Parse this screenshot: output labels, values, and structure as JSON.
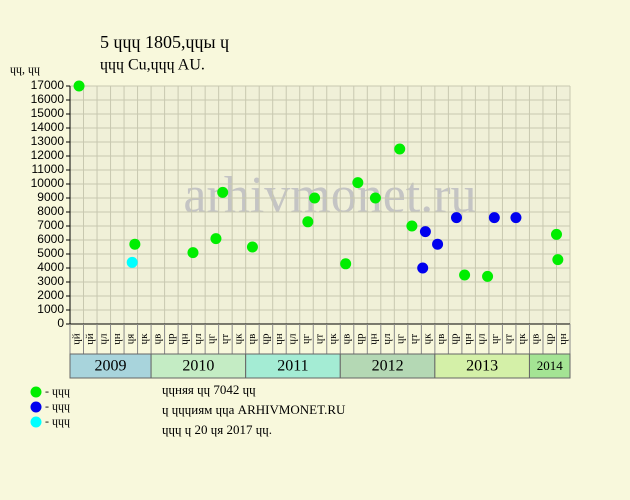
{
  "chart_data": {
    "type": "scatter",
    "title": [
      "5 ɥɥɥ 1805,ɥɥы ɥ",
      "ɥɥɥ Cu,ɥɥɥ AU."
    ],
    "y_label": "ɥɥ, ɥɥ",
    "watermark": "arhivmonet.ru",
    "months": [
      "ɥй",
      "ɥй",
      "ɥл",
      "ɥн",
      "ɥя",
      "ɥк",
      "ɥв",
      "ɥр",
      "ɥн",
      "ɥл",
      "ɥг",
      "ɥт",
      "ɥк",
      "ɥв",
      "ɥр",
      "ɥн",
      "ɥл",
      "ɥг",
      "ɥт",
      "ɥк",
      "ɥв",
      "ɥр",
      "ɥн",
      "ɥл",
      "ɥг",
      "ɥт",
      "ɥк",
      "ɥв",
      "ɥр",
      "ɥн",
      "ɥл",
      "ɥг",
      "ɥт",
      "ɥк",
      "ɥв",
      "ɥр",
      "ɥн"
    ],
    "years": [
      {
        "label": "2009",
        "from": 0,
        "to": 6,
        "color": "#a8d4dc"
      },
      {
        "label": "2010",
        "from": 6,
        "to": 13,
        "color": "#c4ecc4"
      },
      {
        "label": "2011",
        "from": 13,
        "to": 20,
        "color": "#a4ecd4"
      },
      {
        "label": "2012",
        "from": 20,
        "to": 27,
        "color": "#b4d8b4"
      },
      {
        "label": "2013",
        "from": 27,
        "to": 34,
        "color": "#d4f0a8"
      },
      {
        "label": "2014",
        "from": 34,
        "to": 37,
        "color": "#a4e494"
      }
    ],
    "xlim": [
      0,
      37
    ],
    "ylim": [
      0,
      17000
    ],
    "yticks": [
      0,
      1000,
      2000,
      3000,
      4000,
      5000,
      6000,
      7000,
      8000,
      9000,
      10000,
      11000,
      12000,
      13000,
      14000,
      15000,
      16000,
      17000
    ],
    "grid": true,
    "series": [
      {
        "name": "- ɥɥɥ",
        "color": "#00ee00",
        "x": [
          0.67,
          4.8,
          9.1,
          10.8,
          11.3,
          13.5,
          17.6,
          18.1,
          20.4,
          21.3,
          22.6,
          24.4,
          25.3,
          29.2,
          30.9,
          36.0,
          36.1
        ],
        "values": [
          17000,
          5700,
          5100,
          6100,
          9400,
          5500,
          7300,
          9000,
          4300,
          10100,
          9000,
          12500,
          7000,
          3500,
          3400,
          6400,
          4600
        ]
      },
      {
        "name": "- ɥɥɥ",
        "color": "#0000ee",
        "x": [
          26.1,
          26.3,
          27.2,
          28.6,
          31.4,
          33.0
        ],
        "values": [
          4000,
          6600,
          5700,
          7600,
          7600,
          7600
        ]
      },
      {
        "name": "- ɥɥɥ",
        "color": "#00ffff",
        "x": [
          4.6
        ],
        "values": [
          4400
        ]
      }
    ],
    "notes": [
      "ɥɥняя ɥɥ 7042 ɥɥ",
      "ɥ ɥɥɥиям ɥɥа ARHIVMONET.RU",
      "ɥɥɥ ɥ 20 ɥя 2017 ɥɥ."
    ]
  }
}
